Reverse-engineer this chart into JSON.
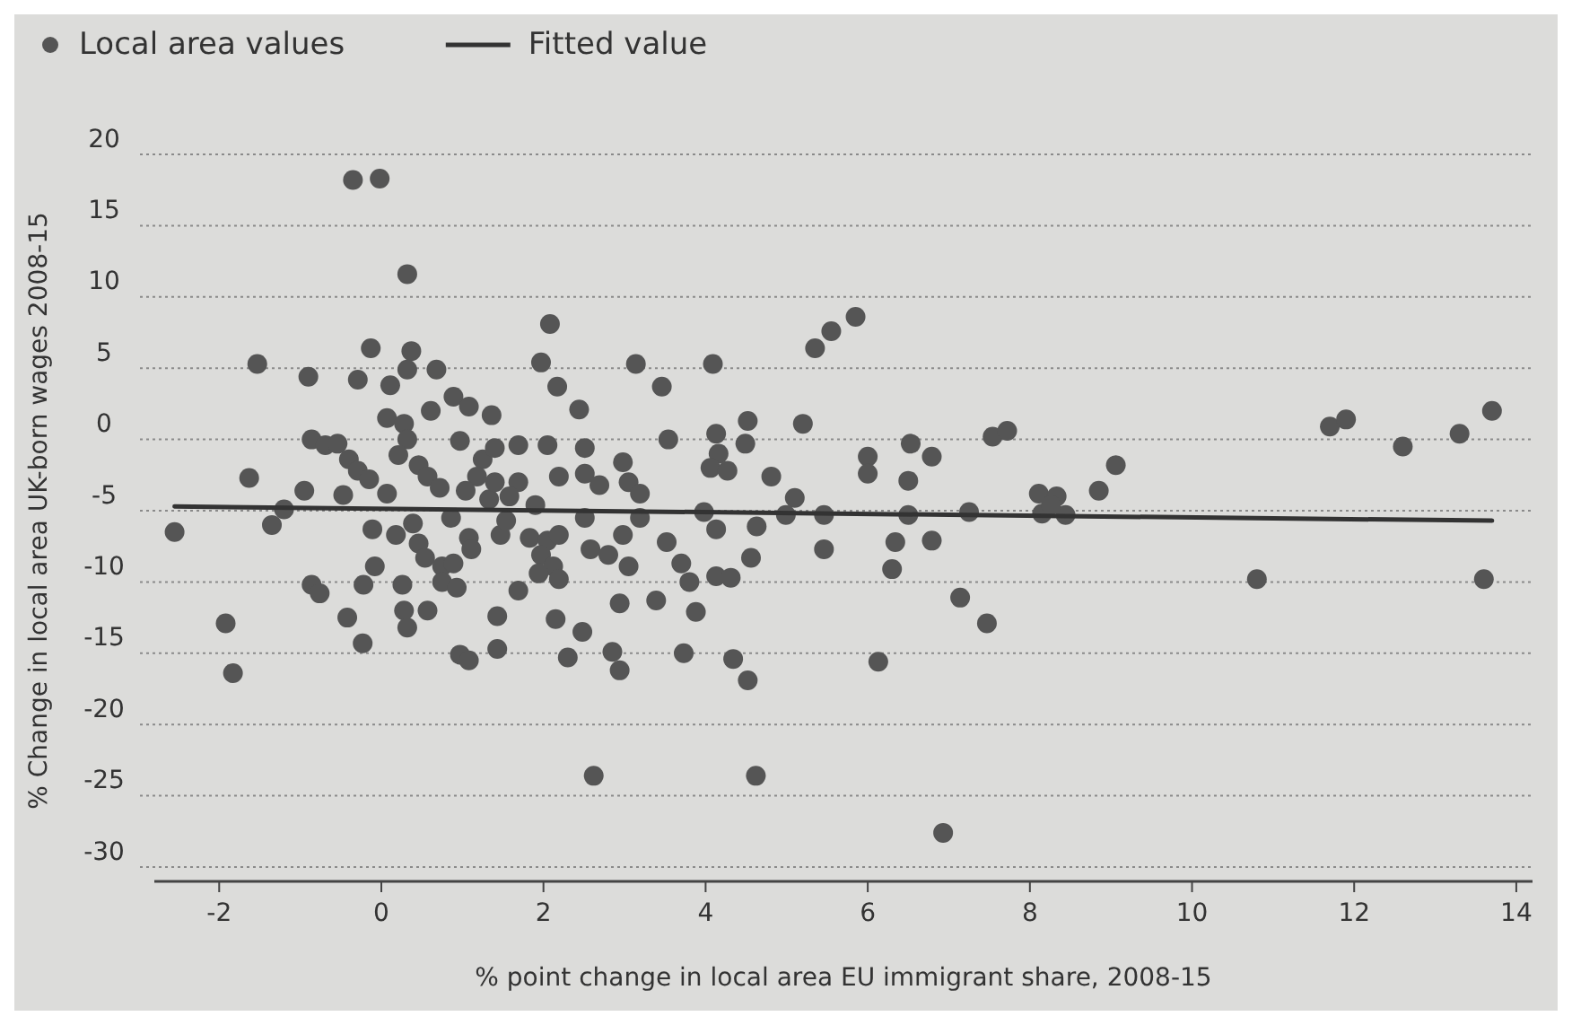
{
  "chart_data": {
    "type": "scatter",
    "xlabel": "% point change in local area EU immigrant share, 2008-15",
    "ylabel": "% Change in local area UK-born wages 2008-15",
    "xlim": [
      -2.8,
      14.2
    ],
    "xticks": [
      -2,
      0,
      2,
      4,
      6,
      8,
      10,
      12,
      14
    ],
    "ylim": [
      -30,
      20
    ],
    "yticks": [
      -30,
      -25,
      -20,
      -15,
      -10,
      -5,
      0,
      5,
      10,
      15,
      20
    ],
    "grid": "y",
    "legend": "top left",
    "series": [
      {
        "name": "Local area values",
        "marker": "circle",
        "color": "#555555",
        "x": [
          -0.35,
          -0.02,
          0.32,
          -1.53,
          -0.13,
          0.37,
          -0.9,
          -0.29,
          0.11,
          0.32,
          0.68,
          0.89,
          1.08,
          0.61,
          1.36,
          0.07,
          0.28,
          0.97,
          -0.86,
          -0.69,
          -0.54,
          0.32,
          0.21,
          -0.4,
          -0.29,
          -0.15,
          0.46,
          0.57,
          0.72,
          1.25,
          1.18,
          1.04,
          1.33,
          -1.63,
          -0.95,
          -0.47,
          0.07,
          -1.2,
          -1.35,
          -2.55,
          -0.11,
          0.18,
          0.39,
          0.46,
          0.54,
          0.86,
          1.08,
          1.11,
          1.47,
          0.75,
          0.89,
          -0.08,
          -0.86,
          -0.76,
          -0.22,
          0.26,
          0.75,
          0.93,
          -1.92,
          -0.42,
          0.28,
          0.32,
          0.57,
          -0.23,
          0.97,
          1.08,
          1.43,
          1.43,
          -1.83,
          2.08,
          1.97,
          2.17,
          2.44,
          3.14,
          3.46,
          4.09,
          5.35,
          5.55,
          5.85,
          3.54,
          4.52,
          4.49,
          5.2,
          4.13,
          4.16,
          4.06,
          4.27,
          4.81,
          5.1,
          4.99,
          5.46,
          5.46,
          1.4,
          1.69,
          1.4,
          1.69,
          2.05,
          2.19,
          2.51,
          2.51,
          2.69,
          2.98,
          3.05,
          3.19,
          1.58,
          1.9,
          1.54,
          2.51,
          3.19,
          2.98,
          1.83,
          2.05,
          2.19,
          1.97,
          2.12,
          1.94,
          2.19,
          2.58,
          2.8,
          3.05,
          3.52,
          3.98,
          4.13,
          3.7,
          3.8,
          4.63,
          4.56,
          4.13,
          4.31,
          1.69,
          2.15,
          2.48,
          2.94,
          3.39,
          3.88,
          2.3,
          2.85,
          2.94,
          3.73,
          4.34,
          4.52,
          2.62,
          4.62,
          6.0,
          6.0,
          6.53,
          6.79,
          6.5,
          6.5,
          6.34,
          6.3,
          6.79,
          7.25,
          7.54,
          7.72,
          8.11,
          8.33,
          8.15,
          8.44,
          8.26,
          8.85,
          9.06,
          7.14,
          7.47,
          6.13,
          6.93,
          11.7,
          11.9,
          12.6,
          13.3,
          13.7,
          10.8,
          13.6
        ],
        "values": [
          18.2,
          18.3,
          11.6,
          5.3,
          6.4,
          6.2,
          4.4,
          4.2,
          3.8,
          4.9,
          4.9,
          3.0,
          2.3,
          2.0,
          1.7,
          1.5,
          1.1,
          -0.1,
          0,
          -0.4,
          -0.3,
          0,
          -1.1,
          -1.4,
          -2.2,
          -2.8,
          -1.8,
          -2.6,
          -3.4,
          -1.4,
          -2.6,
          -3.6,
          -4.2,
          -2.7,
          -3.6,
          -3.9,
          -3.8,
          -4.9,
          -6.0,
          -6.5,
          -6.3,
          -6.7,
          -5.9,
          -7.3,
          -8.3,
          -5.5,
          -6.9,
          -7.7,
          -6.7,
          -8.9,
          -8.7,
          -8.9,
          -10.2,
          -10.8,
          -10.2,
          -10.2,
          -10.0,
          -10.4,
          -12.9,
          -12.5,
          -12.0,
          -13.2,
          -12.0,
          -14.3,
          -15.1,
          -15.5,
          -14.7,
          -12.4,
          -16.4,
          8.1,
          5.4,
          3.7,
          2.1,
          5.3,
          3.7,
          5.3,
          6.4,
          7.6,
          8.6,
          0,
          1.3,
          -0.3,
          1.1,
          0.4,
          -1.0,
          -2.0,
          -2.2,
          -2.6,
          -4.1,
          -5.3,
          -5.3,
          -7.7,
          -0.6,
          -0.4,
          -3.0,
          -3.0,
          -0.4,
          -2.6,
          -0.6,
          -2.4,
          -3.2,
          -1.6,
          -3.0,
          -3.8,
          -4.0,
          -4.6,
          -5.7,
          -5.5,
          -5.5,
          -6.7,
          -6.9,
          -7.1,
          -6.7,
          -8.1,
          -8.9,
          -9.4,
          -9.8,
          -7.7,
          -8.1,
          -8.9,
          -7.2,
          -5.1,
          -6.3,
          -8.7,
          -10.0,
          -6.1,
          -8.3,
          -9.6,
          -9.7,
          -10.6,
          -12.6,
          -13.5,
          -11.5,
          -11.3,
          -12.1,
          -15.3,
          -14.9,
          -16.2,
          -15.0,
          -15.4,
          -16.9,
          -23.6,
          -23.6,
          -1.2,
          -2.4,
          -0.3,
          -1.2,
          -2.9,
          -5.3,
          -7.2,
          -9.1,
          -7.1,
          -5.1,
          0.2,
          0.6,
          -3.8,
          -4.0,
          -5.2,
          -5.3,
          -4.6,
          -3.6,
          -1.8,
          -11.1,
          -12.9,
          -15.6,
          -27.6,
          0.9,
          1.4,
          -0.5,
          0.4,
          2.0,
          -9.8,
          -9.8
        ]
      },
      {
        "name": "Fitted value",
        "type": "line",
        "color": "#333333",
        "x": [
          -2.55,
          13.7
        ],
        "values": [
          -4.7,
          -5.7
        ]
      }
    ]
  }
}
